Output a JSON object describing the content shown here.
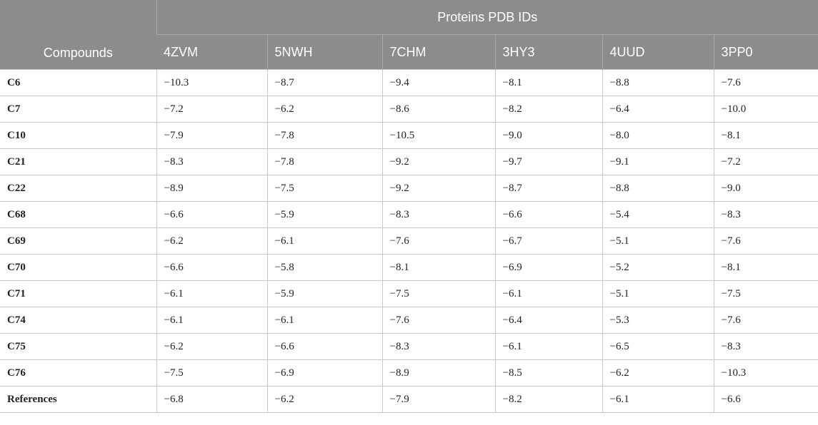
{
  "table": {
    "corner_label": "Compounds",
    "group_header": "Proteins PDB IDs",
    "columns": [
      "4ZVM",
      "5NWH",
      "7CHM",
      "3HY3",
      "4UUD",
      "3PP0"
    ],
    "rows": [
      {
        "compound": "C6",
        "values": [
          "−10.3",
          "−8.7",
          "−9.4",
          "−8.1",
          "−8.8",
          "−7.6"
        ]
      },
      {
        "compound": "C7",
        "values": [
          "−7.2",
          "−6.2",
          "−8.6",
          "−8.2",
          "−6.4",
          "−10.0"
        ]
      },
      {
        "compound": "C10",
        "values": [
          "−7.9",
          "−7.8",
          "−10.5",
          "−9.0",
          "−8.0",
          "−8.1"
        ]
      },
      {
        "compound": "C21",
        "values": [
          "−8.3",
          "−7.8",
          "−9.2",
          "−9.7",
          "−9.1",
          "−7.2"
        ]
      },
      {
        "compound": "C22",
        "values": [
          "−8.9",
          "−7.5",
          "−9.2",
          "−8.7",
          "−8.8",
          "−9.0"
        ]
      },
      {
        "compound": "C68",
        "values": [
          "−6.6",
          "−5.9",
          "−8.3",
          "−6.6",
          "−5.4",
          "−8.3"
        ]
      },
      {
        "compound": "C69",
        "values": [
          "−6.2",
          "−6.1",
          "−7.6",
          "−6.7",
          "−5.1",
          "−7.6"
        ]
      },
      {
        "compound": "C70",
        "values": [
          "−6.6",
          "−5.8",
          "−8.1",
          "−6.9",
          "−5.2",
          "−8.1"
        ]
      },
      {
        "compound": "C71",
        "values": [
          "−6.1",
          "−5.9",
          "−7.5",
          "−6.1",
          "−5.1",
          "−7.5"
        ]
      },
      {
        "compound": "C74",
        "values": [
          "−6.1",
          "−6.1",
          "−7.6",
          "−6.4",
          "−5.3",
          "−7.6"
        ]
      },
      {
        "compound": "C75",
        "values": [
          "−6.2",
          "−6.6",
          "−8.3",
          "−6.1",
          "−6.5",
          "−8.3"
        ]
      },
      {
        "compound": "C76",
        "values": [
          "−7.5",
          "−6.9",
          "−8.9",
          "−8.5",
          "−6.2",
          "−10.3"
        ]
      },
      {
        "compound": "References",
        "values": [
          "−6.8",
          "−6.2",
          "−7.9",
          "−8.2",
          "−6.1",
          "−6.6"
        ]
      }
    ]
  },
  "colors": {
    "header_bg": "#8c8c8c",
    "header_text": "#ffffff",
    "grid_line": "#c8c8c8"
  }
}
